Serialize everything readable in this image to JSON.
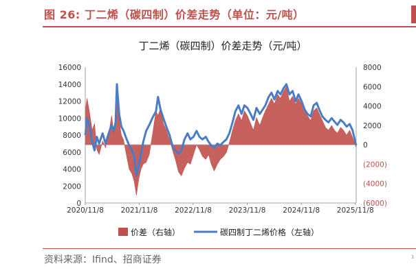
{
  "figure": {
    "label": "图 26:",
    "caption": "丁二烯（碳四制）价差走势（单位：元/吨）",
    "source": "资料来源：Ifind、招商证券"
  },
  "colors": {
    "accent": "#c0504d",
    "line": "#4a7cc4",
    "bar": "#c0504d",
    "negative_text": "#c0504d"
  },
  "chart_data": {
    "type": "line+area",
    "title": "丁二烯（碳四制）价差走势（元/吨）",
    "x_ticks": [
      "2020/11/8",
      "2021/11/8",
      "2022/11/8",
      "2023/11/8",
      "2024/11/8",
      "2025/11/8"
    ],
    "x_range": [
      "2020/11/8",
      "2025/11/14"
    ],
    "left_axis": {
      "range": [
        0,
        16000
      ],
      "ticks": [
        0,
        2000,
        4000,
        6000,
        8000,
        10000,
        12000,
        14000,
        16000
      ],
      "tick_labels": [
        "0",
        "2000",
        "4000",
        "6000",
        "8000",
        "10000",
        "12000",
        "14000",
        "16000"
      ]
    },
    "right_axis": {
      "range": [
        -6000,
        8000
      ],
      "ticks": [
        8000,
        6000,
        4000,
        2000,
        0,
        -2000,
        -4000,
        -6000
      ],
      "tick_labels": [
        "8000",
        "6000",
        "4000",
        "2000",
        "0",
        "(2000)",
        "(4000)",
        "(6000)"
      ]
    },
    "grid": false,
    "legend_position": "bottom",
    "series": [
      {
        "name": "价差（右轴）",
        "type": "area",
        "axis": "right",
        "color": "#c0504d",
        "points": [
          [
            "2020/11/8",
            3500
          ],
          [
            "2020/11/20",
            4800
          ],
          [
            "2020/12/5",
            3500
          ],
          [
            "2020/12/25",
            1500
          ],
          [
            "2021/1/10",
            2200
          ],
          [
            "2021/1/25",
            -500
          ],
          [
            "2021/2/10",
            -1000
          ],
          [
            "2021/3/5",
            400
          ],
          [
            "2021/3/25",
            -300
          ],
          [
            "2021/4/15",
            1000
          ],
          [
            "2021/5/5",
            3000
          ],
          [
            "2021/5/20",
            1200
          ],
          [
            "2021/6/1",
            2000
          ],
          [
            "2021/6/10",
            6000
          ],
          [
            "2021/6/25",
            2500
          ],
          [
            "2021/7/10",
            1000
          ],
          [
            "2021/7/25",
            500
          ],
          [
            "2021/8/15",
            -1200
          ],
          [
            "2021/9/1",
            -2500
          ],
          [
            "2021/9/20",
            -3000
          ],
          [
            "2021/10/5",
            -3800
          ],
          [
            "2021/10/20",
            -5200
          ],
          [
            "2021/11/5",
            -3500
          ],
          [
            "2021/11/20",
            -2500
          ],
          [
            "2021/12/5",
            -2000
          ],
          [
            "2021/12/25",
            -1800
          ],
          [
            "2022/1/15",
            -1000
          ],
          [
            "2022/2/10",
            1500
          ],
          [
            "2022/3/1",
            3500
          ],
          [
            "2022/3/15",
            3000
          ],
          [
            "2022/4/1",
            3800
          ],
          [
            "2022/4/20",
            2200
          ],
          [
            "2022/5/10",
            1500
          ],
          [
            "2022/6/1",
            500
          ],
          [
            "2022/6/20",
            -500
          ],
          [
            "2022/7/10",
            -1500
          ],
          [
            "2022/8/1",
            -2800
          ],
          [
            "2022/8/20",
            -3200
          ],
          [
            "2022/9/10",
            -2400
          ],
          [
            "2022/10/1",
            -1800
          ],
          [
            "2022/10/20",
            -2000
          ],
          [
            "2022/11/10",
            -1000
          ],
          [
            "2022/12/1",
            0
          ],
          [
            "2022/12/20",
            -500
          ],
          [
            "2023/1/10",
            -1200
          ],
          [
            "2023/2/1",
            -1500
          ],
          [
            "2023/2/20",
            -1000
          ],
          [
            "2023/3/10",
            -2000
          ],
          [
            "2023/3/30",
            -2700
          ],
          [
            "2023/4/20",
            -2000
          ],
          [
            "2023/5/10",
            -1500
          ],
          [
            "2023/6/1",
            -1200
          ],
          [
            "2023/6/20",
            -800
          ],
          [
            "2023/7/10",
            200
          ],
          [
            "2023/8/1",
            1500
          ],
          [
            "2023/8/20",
            2500
          ],
          [
            "2023/9/10",
            3200
          ],
          [
            "2023/10/1",
            2500
          ],
          [
            "2023/10/20",
            3500
          ],
          [
            "2023/11/10",
            3000
          ],
          [
            "2023/12/1",
            2200
          ],
          [
            "2023/12/20",
            1500
          ],
          [
            "2024/1/10",
            2800
          ],
          [
            "2024/2/1",
            2000
          ],
          [
            "2024/2/20",
            2800
          ],
          [
            "2024/3/10",
            3500
          ],
          [
            "2024/4/1",
            4200
          ],
          [
            "2024/4/20",
            4800
          ],
          [
            "2024/5/10",
            4200
          ],
          [
            "2024/6/1",
            5200
          ],
          [
            "2024/6/20",
            4800
          ],
          [
            "2024/7/10",
            5500
          ],
          [
            "2024/7/30",
            6000
          ],
          [
            "2024/8/20",
            4500
          ],
          [
            "2024/9/10",
            5000
          ],
          [
            "2024/10/1",
            4200
          ],
          [
            "2024/10/20",
            4800
          ],
          [
            "2024/11/10",
            4200
          ],
          [
            "2024/12/1",
            3500
          ],
          [
            "2024/12/20",
            3000
          ],
          [
            "2025/1/10",
            2500
          ],
          [
            "2025/1/30",
            3500
          ],
          [
            "2025/2/20",
            3800
          ],
          [
            "2025/3/10",
            3200
          ],
          [
            "2025/3/30",
            2500
          ],
          [
            "2025/4/20",
            1800
          ],
          [
            "2025/5/10",
            1500
          ],
          [
            "2025/6/1",
            2000
          ],
          [
            "2025/6/20",
            1500
          ],
          [
            "2025/7/10",
            1200
          ],
          [
            "2025/8/1",
            1800
          ],
          [
            "2025/8/20",
            1500
          ],
          [
            "2025/9/10",
            1000
          ],
          [
            "2025/10/1",
            1500
          ],
          [
            "2025/10/20",
            800
          ],
          [
            "2025/11/14",
            -300
          ]
        ]
      },
      {
        "name": "碳四制丁二烯价格（左轴）",
        "type": "line",
        "axis": "left",
        "color": "#4a7cc4",
        "points": [
          [
            "2020/11/8",
            8000
          ],
          [
            "2020/11/20",
            10000
          ],
          [
            "2020/12/5",
            9200
          ],
          [
            "2020/12/25",
            7200
          ],
          [
            "2021/1/10",
            6200
          ],
          [
            "2021/1/25",
            7800
          ],
          [
            "2021/2/10",
            7000
          ],
          [
            "2021/3/5",
            8200
          ],
          [
            "2021/3/25",
            7000
          ],
          [
            "2021/4/15",
            8200
          ],
          [
            "2021/5/5",
            9200
          ],
          [
            "2021/5/20",
            8500
          ],
          [
            "2021/6/1",
            9500
          ],
          [
            "2021/6/10",
            14000
          ],
          [
            "2021/6/25",
            10500
          ],
          [
            "2021/7/10",
            9000
          ],
          [
            "2021/7/25",
            8500
          ],
          [
            "2021/8/15",
            7500
          ],
          [
            "2021/9/1",
            6800
          ],
          [
            "2021/9/20",
            6200
          ],
          [
            "2021/10/5",
            5500
          ],
          [
            "2021/10/20",
            3200
          ],
          [
            "2021/11/5",
            4500
          ],
          [
            "2021/11/20",
            5800
          ],
          [
            "2021/12/5",
            7200
          ],
          [
            "2021/12/25",
            8500
          ],
          [
            "2022/1/15",
            9200
          ],
          [
            "2022/2/10",
            10200
          ],
          [
            "2022/3/1",
            10800
          ],
          [
            "2022/3/15",
            12500
          ],
          [
            "2022/4/1",
            11000
          ],
          [
            "2022/4/20",
            10000
          ],
          [
            "2022/5/10",
            9000
          ],
          [
            "2022/6/1",
            8000
          ],
          [
            "2022/6/20",
            6800
          ],
          [
            "2022/7/10",
            6200
          ],
          [
            "2022/8/1",
            5800
          ],
          [
            "2022/8/20",
            6200
          ],
          [
            "2022/9/10",
            7500
          ],
          [
            "2022/10/1",
            8200
          ],
          [
            "2022/10/20",
            7500
          ],
          [
            "2022/11/10",
            7800
          ],
          [
            "2022/12/1",
            8500
          ],
          [
            "2022/12/20",
            7800
          ],
          [
            "2023/1/10",
            7500
          ],
          [
            "2023/2/1",
            7800
          ],
          [
            "2023/2/20",
            7200
          ],
          [
            "2023/3/10",
            6800
          ],
          [
            "2023/3/30",
            6500
          ],
          [
            "2023/4/20",
            7000
          ],
          [
            "2023/5/10",
            6800
          ],
          [
            "2023/6/1",
            7200
          ],
          [
            "2023/6/20",
            7500
          ],
          [
            "2023/7/10",
            8200
          ],
          [
            "2023/8/1",
            9500
          ],
          [
            "2023/8/20",
            10800
          ],
          [
            "2023/9/10",
            11500
          ],
          [
            "2023/10/1",
            10500
          ],
          [
            "2023/10/20",
            11500
          ],
          [
            "2023/11/10",
            11200
          ],
          [
            "2023/12/1",
            10500
          ],
          [
            "2023/12/20",
            9800
          ],
          [
            "2024/1/10",
            11200
          ],
          [
            "2024/2/1",
            10500
          ],
          [
            "2024/2/20",
            11000
          ],
          [
            "2024/3/10",
            11500
          ],
          [
            "2024/4/1",
            12500
          ],
          [
            "2024/4/20",
            13000
          ],
          [
            "2024/5/10",
            12200
          ],
          [
            "2024/6/1",
            13200
          ],
          [
            "2024/6/20",
            12800
          ],
          [
            "2024/7/10",
            13500
          ],
          [
            "2024/7/30",
            14000
          ],
          [
            "2024/8/20",
            12800
          ],
          [
            "2024/9/10",
            13200
          ],
          [
            "2024/10/1",
            12000
          ],
          [
            "2024/10/20",
            12800
          ],
          [
            "2024/11/10",
            12000
          ],
          [
            "2024/12/1",
            11000
          ],
          [
            "2024/12/20",
            10500
          ],
          [
            "2025/1/10",
            10200
          ],
          [
            "2025/1/30",
            11500
          ],
          [
            "2025/2/20",
            11800
          ],
          [
            "2025/3/10",
            11000
          ],
          [
            "2025/3/30",
            10200
          ],
          [
            "2025/4/20",
            9800
          ],
          [
            "2025/5/10",
            9500
          ],
          [
            "2025/6/1",
            10000
          ],
          [
            "2025/6/20",
            9600
          ],
          [
            "2025/7/10",
            9200
          ],
          [
            "2025/8/1",
            9800
          ],
          [
            "2025/8/20",
            9500
          ],
          [
            "2025/9/10",
            9000
          ],
          [
            "2025/10/1",
            9300
          ],
          [
            "2025/10/20",
            8600
          ],
          [
            "2025/11/14",
            6800
          ]
        ]
      }
    ]
  }
}
